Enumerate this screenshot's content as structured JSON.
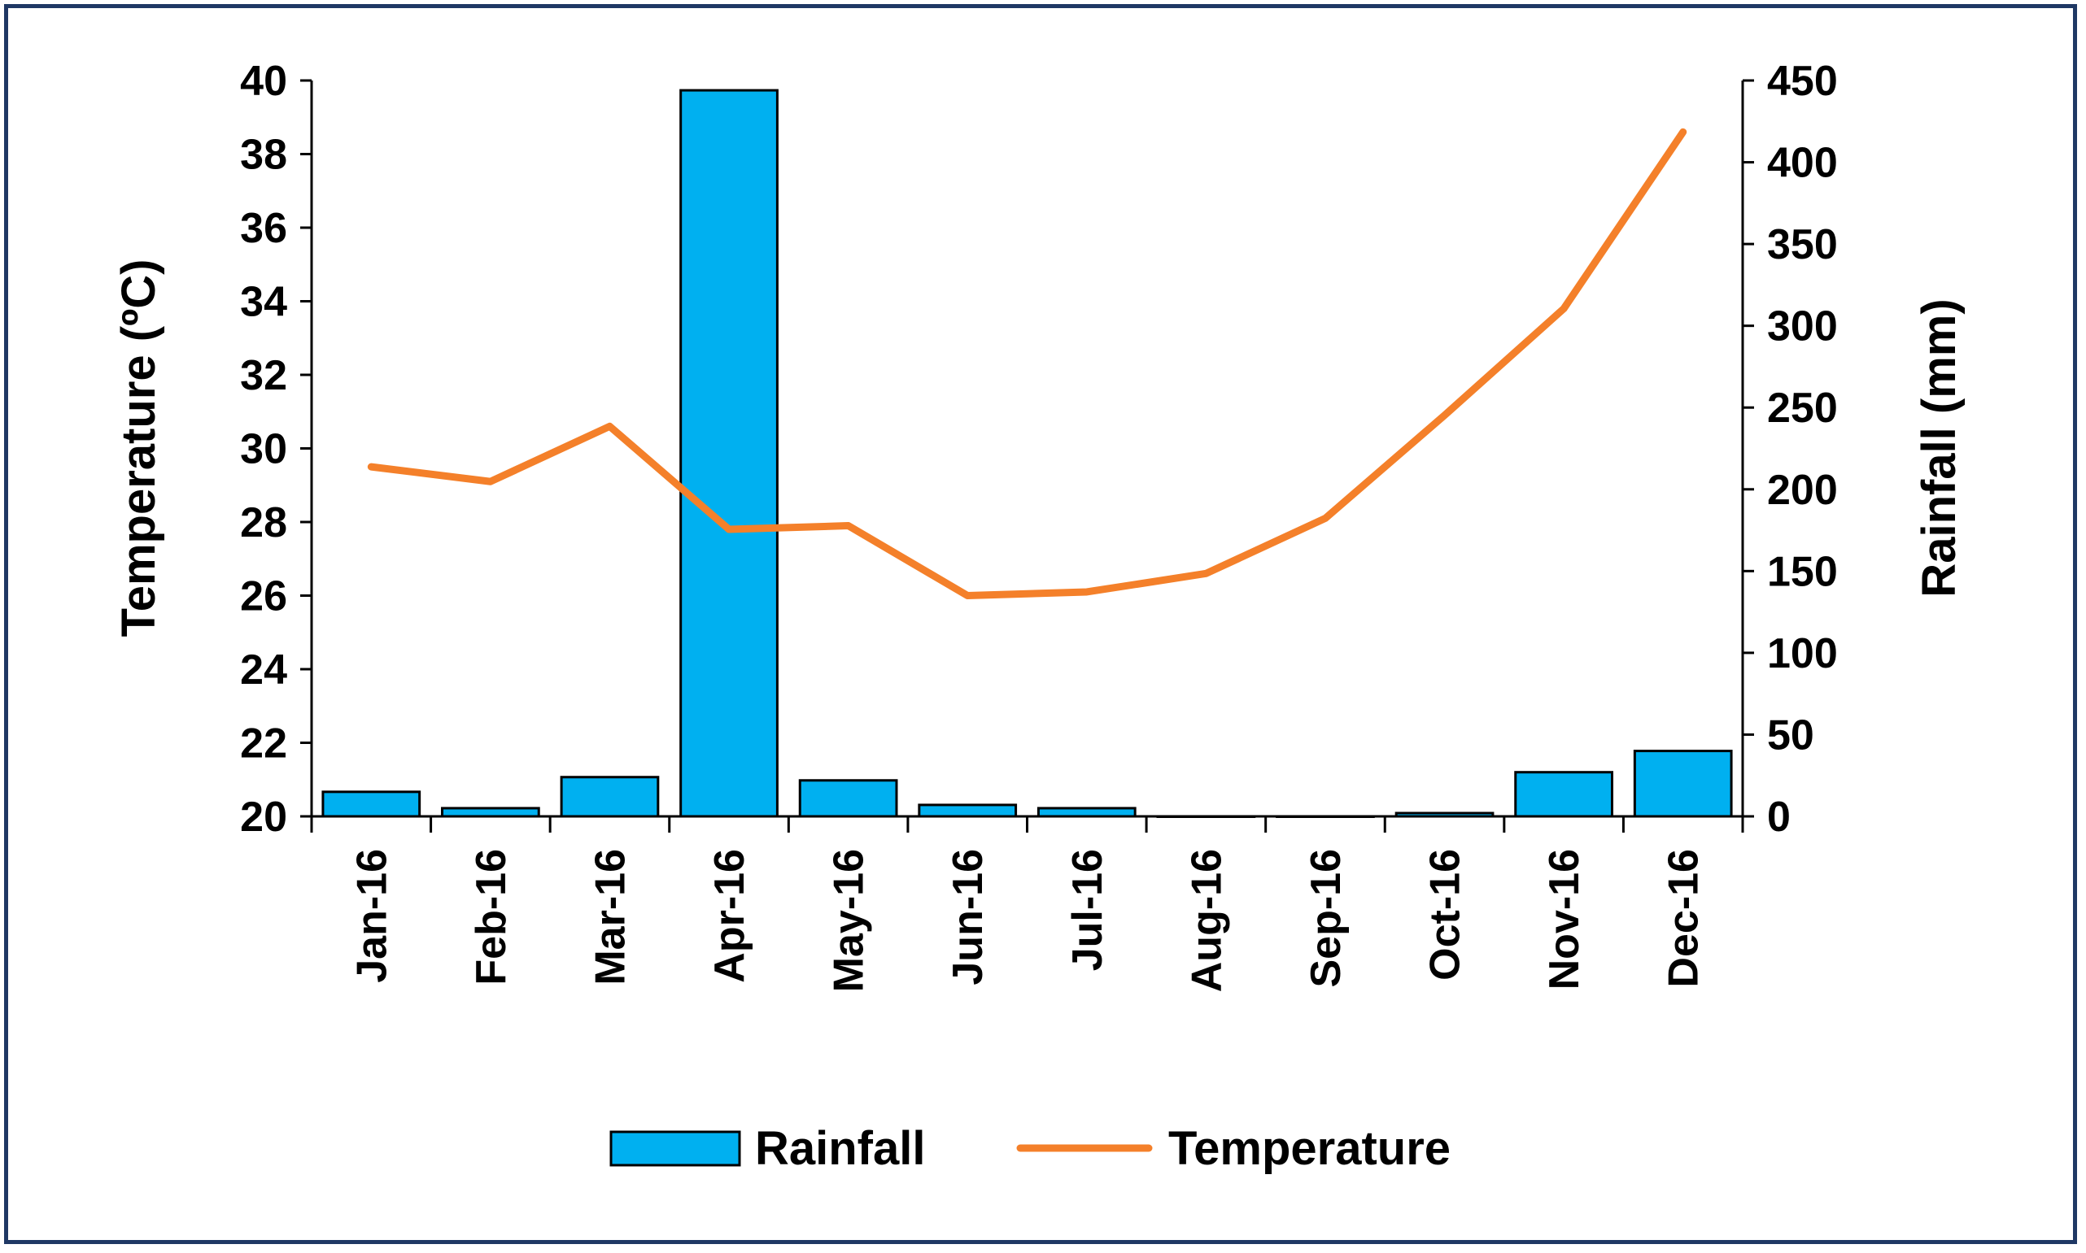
{
  "chart_data": {
    "type": "bar+line",
    "title": "",
    "categories": [
      "Jan-16",
      "Feb-16",
      "Mar-16",
      "Apr-16",
      "May-16",
      "Jun-16",
      "Jul-16",
      "Aug-16",
      "Sep-16",
      "Oct-16",
      "Nov-16",
      "Dec-16"
    ],
    "series": [
      {
        "name": "Rainfall",
        "type": "bar",
        "axis": "right",
        "color": "#00B0F0",
        "values": [
          15,
          5,
          24,
          444,
          22,
          7,
          5,
          0,
          0,
          2,
          27,
          40
        ]
      },
      {
        "name": "Temperature",
        "type": "line",
        "axis": "left",
        "color": "#F4802A",
        "values": [
          29.5,
          29.1,
          30.6,
          27.8,
          27.9,
          26.0,
          26.1,
          26.6,
          28.1,
          30.9,
          33.8,
          38.6
        ]
      }
    ],
    "y_left": {
      "label": "Temperature (ºC)",
      "ylim": [
        20,
        40
      ],
      "ticks": [
        "20",
        "22",
        "24",
        "26",
        "28",
        "30",
        "32",
        "34",
        "36",
        "38",
        "40"
      ]
    },
    "y_right": {
      "label": "Rainfall (mm)",
      "ylim": [
        0,
        450
      ],
      "ticks": [
        "0",
        "50",
        "100",
        "150",
        "200",
        "250",
        "300",
        "350",
        "400",
        "450"
      ]
    },
    "grid": false,
    "legend": {
      "position": "bottom",
      "entries": [
        "Rainfall",
        "Temperature"
      ]
    }
  }
}
